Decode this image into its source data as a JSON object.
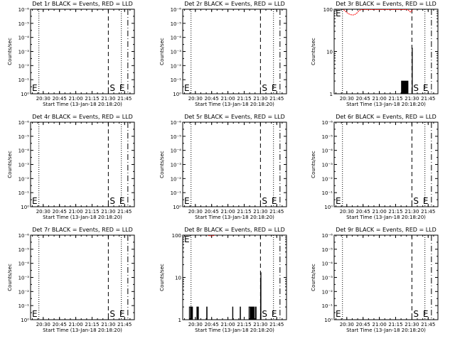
{
  "figure": {
    "background": "#ffffff",
    "foreground": "#000000",
    "lld_color": "#ff0000",
    "start_marker": "S",
    "end_marker": "E",
    "start_time_label": "Start Time (13-Jan-18 20:18:20)"
  },
  "chart_data": [
    {
      "type": "line",
      "title": "Det 1r BLACK = Events, RED = LLD",
      "ylabel": "Counts/sec",
      "xlabel": "Start Time (13-Jan-18 20:18:20)",
      "yscale": "log",
      "ylim_exp": [
        0,
        6
      ],
      "y_ticks": [
        "10⁰",
        "10⁻¹",
        "10⁻²",
        "10⁻³",
        "10⁻⁴",
        "10⁻⁵",
        "10⁻⁶"
      ],
      "x_ticks": [
        "20:30",
        "20:45",
        "21:00",
        "21:15",
        "21:30",
        "21:45"
      ],
      "x_tick_min": [
        30,
        45,
        60,
        75,
        90,
        105
      ],
      "xlim_min": [
        18.33,
        114
      ],
      "markers": {
        "start_dotted_min": 26,
        "S_dashed_min": 90,
        "end_dotted_min": 102,
        "E_dashdot_min": 108
      },
      "events": [],
      "lld": []
    },
    {
      "type": "line",
      "title": "Det 2r BLACK = Events, RED = LLD",
      "ylabel": "Counts/sec",
      "xlabel": "Start Time (13-Jan-18 20:18:20)",
      "yscale": "log",
      "ylim_exp": [
        0,
        6
      ],
      "y_ticks": [
        "10⁰",
        "10⁻¹",
        "10⁻²",
        "10⁻³",
        "10⁻⁴",
        "10⁻⁵",
        "10⁻⁶"
      ],
      "x_ticks": [
        "20:30",
        "20:45",
        "21:00",
        "21:15",
        "21:30",
        "21:45"
      ],
      "x_tick_min": [
        30,
        45,
        60,
        75,
        90,
        105
      ],
      "xlim_min": [
        18.33,
        114
      ],
      "markers": {
        "start_dotted_min": 26,
        "S_dashed_min": 90,
        "end_dotted_min": 102,
        "E_dashdot_min": 108
      },
      "events": [],
      "lld": []
    },
    {
      "type": "line",
      "title": "Det 3r BLACK = Events, RED = LLD",
      "ylabel": "Counts/sec",
      "xlabel": "Start Time (13-Jan-18 20:18:20)",
      "yscale": "log",
      "ylim": [
        1,
        100
      ],
      "y_ticks": [
        "1",
        "10",
        "100"
      ],
      "x_ticks": [
        "20:30",
        "20:45",
        "21:00",
        "21:15",
        "21:30",
        "21:45"
      ],
      "x_tick_min": [
        30,
        45,
        60,
        75,
        90,
        105
      ],
      "xlim_min": [
        18.33,
        114
      ],
      "markers": {
        "start_dotted_min": 26,
        "S_dashed_min": 90,
        "end_dotted_min": 102,
        "E_dashdot_min": 108
      },
      "events": [
        [
          80,
          1
        ],
        [
          80.4,
          2
        ],
        [
          80.8,
          1
        ],
        [
          81.2,
          2
        ],
        [
          81.6,
          1
        ],
        [
          82,
          2
        ],
        [
          82.4,
          1
        ],
        [
          82.8,
          2
        ],
        [
          83.2,
          1
        ],
        [
          83.6,
          2
        ],
        [
          84,
          1
        ],
        [
          84.4,
          2
        ],
        [
          84.8,
          1
        ],
        [
          85.2,
          2
        ],
        [
          85.6,
          1
        ],
        [
          86,
          2
        ],
        [
          86.4,
          1
        ],
        [
          89.8,
          1
        ],
        [
          90.2,
          12
        ],
        [
          90.4,
          1
        ]
      ],
      "lld": [
        [
          27,
          98
        ],
        [
          29,
          88
        ],
        [
          31,
          80
        ],
        [
          33,
          75
        ],
        [
          35,
          73
        ],
        [
          37,
          74
        ],
        [
          39,
          80
        ],
        [
          41,
          90
        ],
        [
          43,
          98
        ],
        [
          86,
          98
        ],
        [
          87,
          94
        ],
        [
          88,
          88
        ],
        [
          89,
          86
        ],
        [
          90,
          92
        ],
        [
          91,
          99
        ]
      ]
    },
    {
      "type": "line",
      "title": "Det 4r BLACK = Events, RED = LLD",
      "ylabel": "Counts/sec",
      "xlabel": "Start Time (13-Jan-18 20:18:20)",
      "yscale": "log",
      "ylim_exp": [
        0,
        6
      ],
      "y_ticks": [
        "10⁰",
        "10⁻¹",
        "10⁻²",
        "10⁻³",
        "10⁻⁴",
        "10⁻⁵",
        "10⁻⁶"
      ],
      "x_ticks": [
        "20:30",
        "20:45",
        "21:00",
        "21:15",
        "21:30",
        "21:45"
      ],
      "x_tick_min": [
        30,
        45,
        60,
        75,
        90,
        105
      ],
      "xlim_min": [
        18.33,
        114
      ],
      "markers": {
        "start_dotted_min": 26,
        "S_dashed_min": 90,
        "end_dotted_min": 102,
        "E_dashdot_min": 108
      },
      "events": [],
      "lld": []
    },
    {
      "type": "line",
      "title": "Det 5r BLACK = Events, RED = LLD",
      "ylabel": "Counts/sec",
      "xlabel": "Start Time (13-Jan-18 20:18:20)",
      "yscale": "log",
      "ylim_exp": [
        0,
        6
      ],
      "y_ticks": [
        "10⁰",
        "10⁻¹",
        "10⁻²",
        "10⁻³",
        "10⁻⁴",
        "10⁻⁵",
        "10⁻⁶"
      ],
      "x_ticks": [
        "20:30",
        "20:45",
        "21:00",
        "21:15",
        "21:30",
        "21:45"
      ],
      "x_tick_min": [
        30,
        45,
        60,
        75,
        90,
        105
      ],
      "xlim_min": [
        18.33,
        114
      ],
      "markers": {
        "start_dotted_min": 26,
        "S_dashed_min": 90,
        "end_dotted_min": 102,
        "E_dashdot_min": 108
      },
      "events": [],
      "lld": []
    },
    {
      "type": "line",
      "title": "Det 6r BLACK = Events, RED = LLD",
      "ylabel": "Counts/sec",
      "xlabel": "Start Time (13-Jan-18 20:18:20)",
      "yscale": "log",
      "ylim_exp": [
        0,
        6
      ],
      "y_ticks": [
        "10⁰",
        "10⁻¹",
        "10⁻²",
        "10⁻³",
        "10⁻⁴",
        "10⁻⁵",
        "10⁻⁶"
      ],
      "x_ticks": [
        "20:30",
        "20:45",
        "21:00",
        "21:15",
        "21:30",
        "21:45"
      ],
      "x_tick_min": [
        30,
        45,
        60,
        75,
        90,
        105
      ],
      "xlim_min": [
        18.33,
        114
      ],
      "markers": {
        "start_dotted_min": 26,
        "S_dashed_min": 90,
        "end_dotted_min": 102,
        "E_dashdot_min": 108
      },
      "events": [],
      "lld": []
    },
    {
      "type": "line",
      "title": "Det 7r BLACK = Events, RED = LLD",
      "ylabel": "Counts/sec",
      "xlabel": "Start Time (13-Jan-18 20:18:20)",
      "yscale": "log",
      "ylim_exp": [
        0,
        6
      ],
      "y_ticks": [
        "10⁰",
        "10⁻¹",
        "10⁻²",
        "10⁻³",
        "10⁻⁴",
        "10⁻⁵",
        "10⁻⁶"
      ],
      "x_ticks": [
        "20:30",
        "20:45",
        "21:00",
        "21:15",
        "21:30",
        "21:45"
      ],
      "x_tick_min": [
        30,
        45,
        60,
        75,
        90,
        105
      ],
      "xlim_min": [
        18.33,
        114
      ],
      "markers": {
        "start_dotted_min": 26,
        "S_dashed_min": 90,
        "end_dotted_min": 102,
        "E_dashdot_min": 108
      },
      "events": [],
      "lld": []
    },
    {
      "type": "line",
      "title": "Det 8r BLACK = Events, RED = LLD",
      "ylabel": "Counts/sec",
      "xlabel": "Start Time (13-Jan-18 20:18:20)",
      "yscale": "log",
      "ylim": [
        1,
        100
      ],
      "y_ticks": [
        "1",
        "10",
        "100"
      ],
      "x_ticks": [
        "20:30",
        "20:45",
        "21:00",
        "21:15",
        "21:30",
        "21:45"
      ],
      "x_tick_min": [
        30,
        45,
        60,
        75,
        90,
        105
      ],
      "xlim_min": [
        18.33,
        114
      ],
      "markers": {
        "start_dotted_min": 26,
        "S_dashed_min": 90,
        "end_dotted_min": 102,
        "E_dashdot_min": 108
      },
      "events": [
        [
          24,
          1
        ],
        [
          24.4,
          2
        ],
        [
          25,
          2
        ],
        [
          25.4,
          1
        ],
        [
          26,
          2
        ],
        [
          26.4,
          1
        ],
        [
          27,
          2
        ],
        [
          27.4,
          1
        ],
        [
          31,
          1
        ],
        [
          31.4,
          2
        ],
        [
          32,
          1
        ],
        [
          32.4,
          2
        ],
        [
          32.8,
          1
        ],
        [
          40,
          1
        ],
        [
          40.4,
          2
        ],
        [
          40.8,
          1
        ],
        [
          64,
          1
        ],
        [
          64.3,
          2
        ],
        [
          64.6,
          1
        ],
        [
          71,
          1
        ],
        [
          71.3,
          2
        ],
        [
          71.6,
          1
        ],
        [
          79,
          1
        ],
        [
          79.4,
          2
        ],
        [
          80,
          2
        ],
        [
          80.4,
          1
        ],
        [
          80.8,
          2
        ],
        [
          81.2,
          1
        ],
        [
          81.6,
          2
        ],
        [
          82,
          1
        ],
        [
          82.4,
          2
        ],
        [
          82.8,
          1
        ],
        [
          83.2,
          2
        ],
        [
          83.6,
          1
        ],
        [
          84,
          2
        ],
        [
          84.4,
          1
        ],
        [
          85.5,
          2
        ],
        [
          86,
          1
        ],
        [
          89.8,
          1
        ],
        [
          90.1,
          8
        ],
        [
          90.3,
          13
        ],
        [
          90.5,
          1
        ]
      ],
      "lld": [
        [
          42,
          98
        ],
        [
          44,
          96
        ],
        [
          46,
          97
        ],
        [
          48,
          99
        ]
      ]
    },
    {
      "type": "line",
      "title": "Det 9r BLACK = Events, RED = LLD",
      "ylabel": "Counts/sec",
      "xlabel": "Start Time (13-Jan-18 20:18:20)",
      "yscale": "log",
      "ylim_exp": [
        0,
        6
      ],
      "y_ticks": [
        "10⁰",
        "10⁻¹",
        "10⁻²",
        "10⁻³",
        "10⁻⁴",
        "10⁻⁵",
        "10⁻⁶"
      ],
      "x_ticks": [
        "20:30",
        "20:45",
        "21:00",
        "21:15",
        "21:30",
        "21:45"
      ],
      "x_tick_min": [
        30,
        45,
        60,
        75,
        90,
        105
      ],
      "xlim_min": [
        18.33,
        114
      ],
      "markers": {
        "start_dotted_min": 26,
        "S_dashed_min": 90,
        "end_dotted_min": 102,
        "E_dashdot_min": 108
      },
      "events": [],
      "lld": []
    }
  ]
}
